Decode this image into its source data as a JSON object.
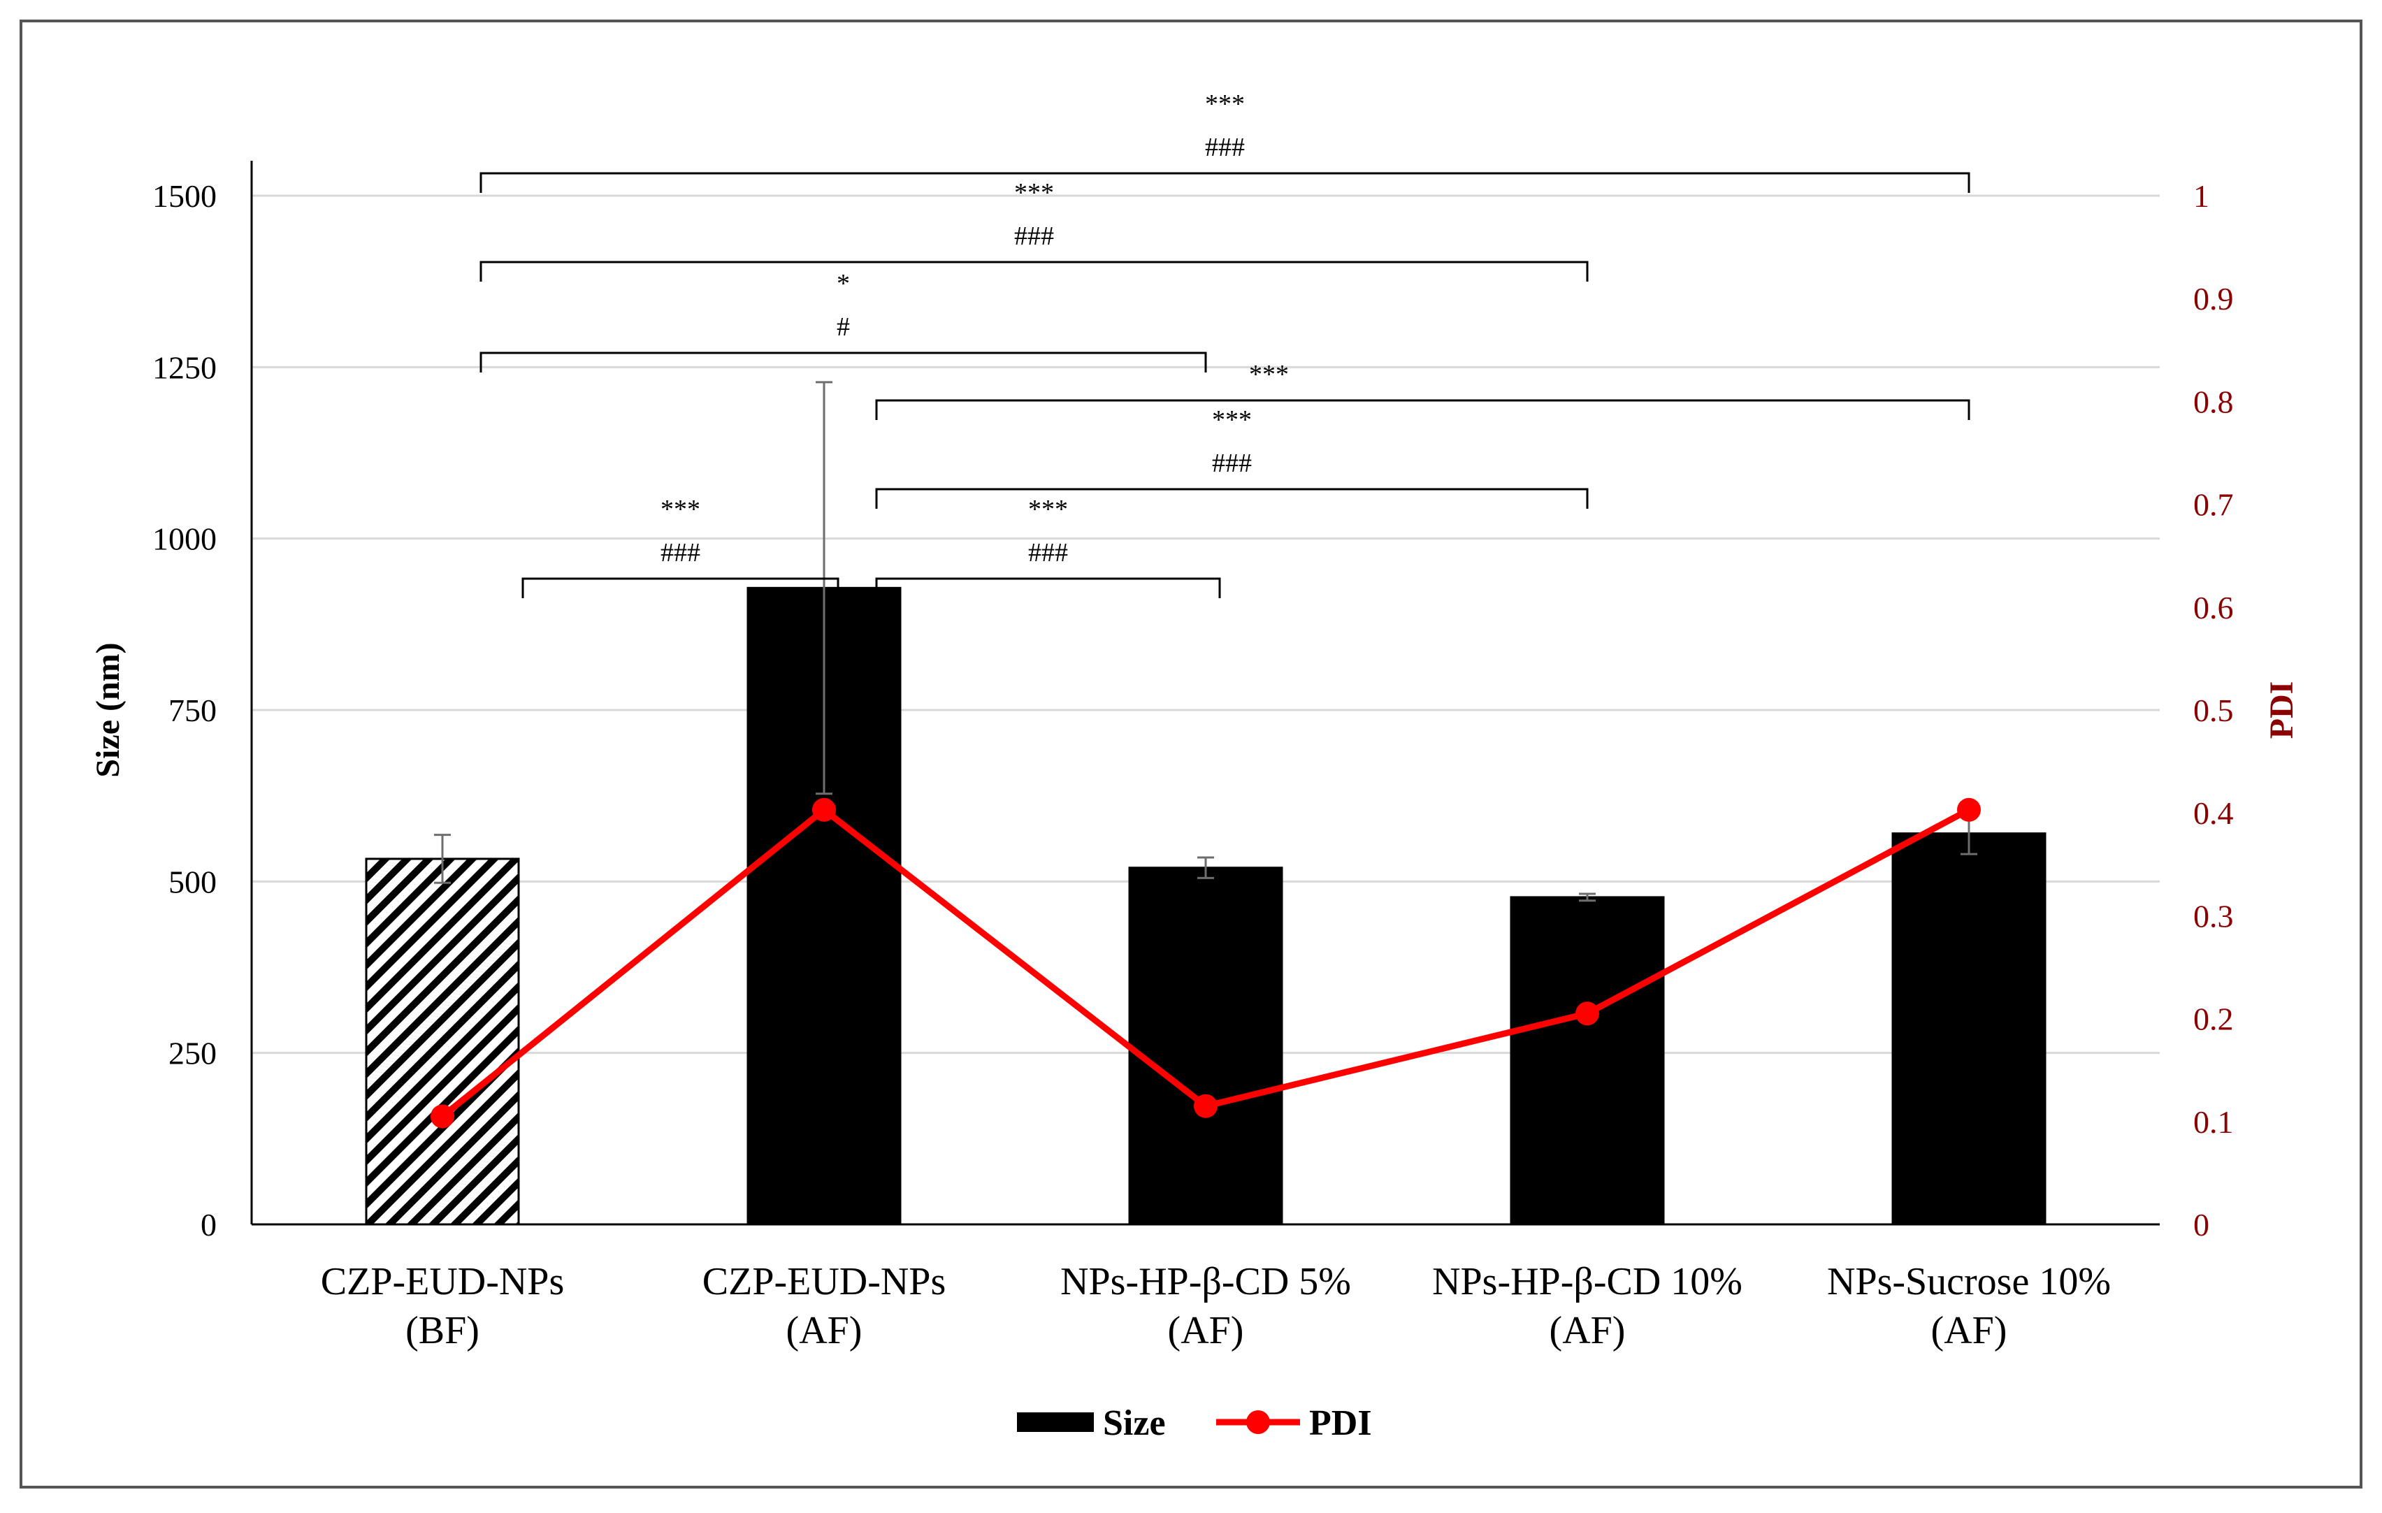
{
  "chart_data": {
    "type": "bar+line",
    "categories": [
      [
        "CZP-EUD-NPs",
        "(BF)"
      ],
      [
        "CZP-EUD-NPs",
        "(AF)"
      ],
      [
        "NPs-HP-β-CD 5%",
        "(AF)"
      ],
      [
        "NPs-HP-β-CD 10%",
        "(AF)"
      ],
      [
        "NPs-Sucrose 10%",
        "(AF)"
      ]
    ],
    "series": [
      {
        "name": "Size",
        "kind": "bar",
        "axis": "left",
        "values": [
          533,
          928,
          520,
          477,
          570
        ],
        "errors": [
          35,
          300,
          15,
          5,
          30
        ],
        "patterns": [
          "hatched",
          "solid",
          "solid",
          "solid",
          "solid"
        ],
        "color": "#000000"
      },
      {
        "name": "PDI",
        "kind": "line",
        "axis": "right",
        "values": [
          0.105,
          0.403,
          0.115,
          0.205,
          0.403
        ],
        "color": "#ff0000"
      }
    ],
    "y_left": {
      "label": "Size (nm)",
      "range": [
        0,
        1500
      ],
      "ticks": [
        "0",
        "250",
        "500",
        "750",
        "1000",
        "1250",
        "1500"
      ]
    },
    "y_right": {
      "label": "PDI",
      "range": [
        0,
        1
      ],
      "ticks": [
        "0",
        "0.1",
        "0.2",
        "0.3",
        "0.4",
        "0.5",
        "0.6",
        "0.7",
        "0.8",
        "0.9",
        "1"
      ],
      "color": "#8b0000"
    },
    "grid": true,
    "legend": {
      "position": "bottom",
      "entries": [
        "Size",
        "PDI"
      ]
    },
    "significance": [
      {
        "from": 0,
        "to": 4,
        "labels": [
          "***",
          "###"
        ]
      },
      {
        "from": 0,
        "to": 3,
        "labels": [
          "***",
          "###"
        ]
      },
      {
        "from": 0,
        "to": 2,
        "labels": [
          "*",
          "#"
        ]
      },
      {
        "from": 1,
        "to": 4,
        "labels": [
          "***"
        ]
      },
      {
        "from": 1,
        "to": 3,
        "labels": [
          "***",
          "###"
        ]
      },
      {
        "from": 0,
        "to": 1,
        "labels": [
          "***",
          "###"
        ]
      },
      {
        "from": 1,
        "to": 2,
        "labels": [
          "***",
          "###"
        ]
      }
    ]
  }
}
